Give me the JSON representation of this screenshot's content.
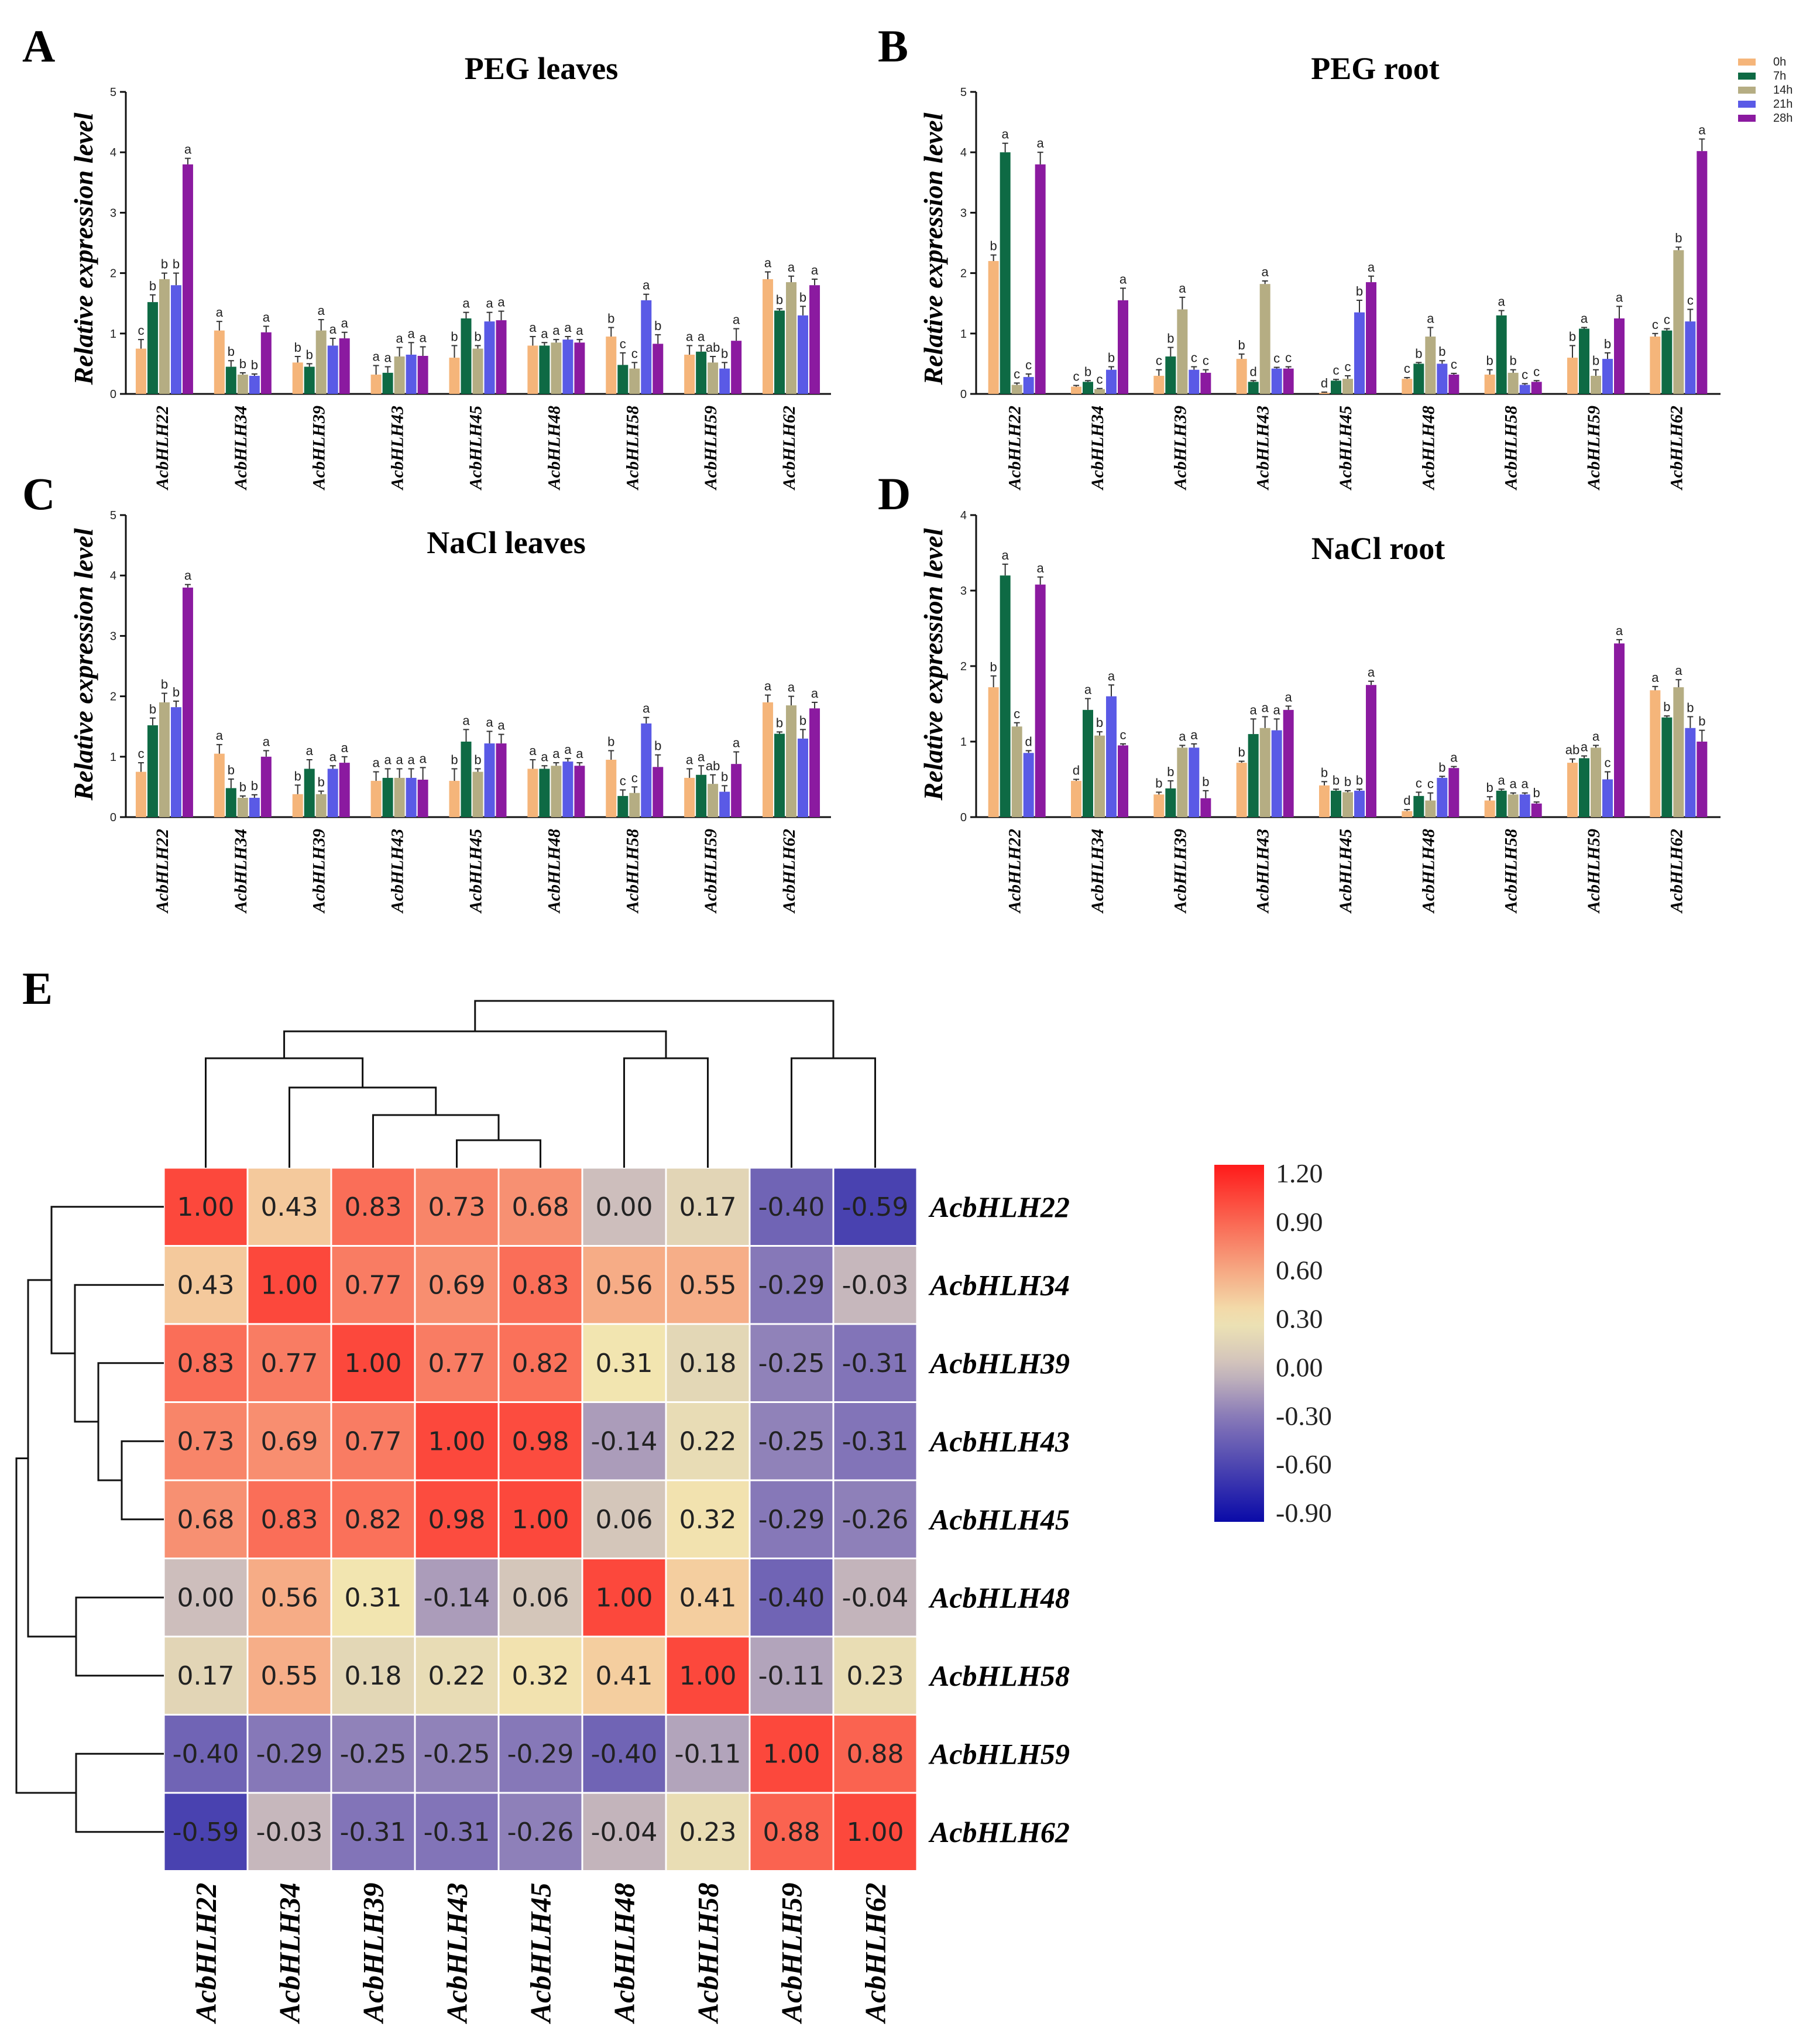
{
  "chart_data": [
    {
      "panel": "A",
      "type": "bar",
      "title": "PEG leaves",
      "ylabel": "Relative expression level",
      "ylim": [
        0,
        5
      ],
      "yticks": [
        0,
        1,
        2,
        3,
        4,
        5
      ],
      "categories": [
        "AcbHLH22",
        "AcbHLH34",
        "AcbHLH39",
        "AcbHLH43",
        "AcbHLH45",
        "AcbHLH48",
        "AcbHLH58",
        "AcbHLH59",
        "AcbHLH62"
      ],
      "series": [
        {
          "name": "0h",
          "values": [
            0.75,
            1.05,
            0.52,
            0.32,
            0.6,
            0.8,
            0.95,
            0.65,
            1.9
          ],
          "errors": [
            0.15,
            0.15,
            0.1,
            0.15,
            0.2,
            0.15,
            0.15,
            0.15,
            0.12
          ],
          "letters": [
            "c",
            "a",
            "b",
            "a",
            "b",
            "a",
            "b",
            "a",
            "a"
          ]
        },
        {
          "name": "7h",
          "values": [
            1.52,
            0.45,
            0.45,
            0.35,
            1.25,
            0.8,
            0.48,
            0.7,
            1.38
          ],
          "errors": [
            0.12,
            0.1,
            0.05,
            0.1,
            0.1,
            0.05,
            0.2,
            0.1,
            0.03
          ],
          "letters": [
            "b",
            "b",
            "b",
            "a",
            "a",
            "a",
            "c",
            "a",
            "b"
          ]
        },
        {
          "name": "14h",
          "values": [
            1.9,
            0.32,
            1.05,
            0.62,
            0.75,
            0.85,
            0.42,
            0.52,
            1.85
          ],
          "errors": [
            0.1,
            0.03,
            0.18,
            0.15,
            0.05,
            0.05,
            0.1,
            0.1,
            0.1
          ],
          "letters": [
            "b",
            "b",
            "a",
            "a",
            "b",
            "a",
            "c",
            "ab",
            "a"
          ]
        },
        {
          "name": "21h",
          "values": [
            1.8,
            0.3,
            0.8,
            0.65,
            1.2,
            0.9,
            1.55,
            0.42,
            1.3
          ],
          "errors": [
            0.2,
            0.03,
            0.12,
            0.2,
            0.15,
            0.05,
            0.1,
            0.1,
            0.15
          ],
          "letters": [
            "b",
            "b",
            "a",
            "a",
            "a",
            "a",
            "a",
            "b",
            "b"
          ]
        },
        {
          "name": "28h",
          "values": [
            3.8,
            1.02,
            0.92,
            0.63,
            1.22,
            0.85,
            0.83,
            0.88,
            1.8
          ],
          "errors": [
            0.1,
            0.1,
            0.1,
            0.15,
            0.15,
            0.05,
            0.15,
            0.2,
            0.1
          ],
          "letters": [
            "a",
            "a",
            "a",
            "a",
            "a",
            "a",
            "b",
            "a",
            "a"
          ]
        }
      ]
    },
    {
      "panel": "B",
      "type": "bar",
      "title": "PEG root",
      "ylabel": "Relative expression level",
      "ylim": [
        0,
        5
      ],
      "yticks": [
        0,
        1,
        2,
        3,
        4,
        5
      ],
      "categories": [
        "AcbHLH22",
        "AcbHLH34",
        "AcbHLH39",
        "AcbHLH43",
        "AcbHLH45",
        "AcbHLH48",
        "AcbHLH58",
        "AcbHLH59",
        "AcbHLH62"
      ],
      "series": [
        {
          "name": "0h",
          "values": [
            2.2,
            0.12,
            0.3,
            0.58,
            0.02,
            0.25,
            0.32,
            0.6,
            0.95
          ],
          "errors": [
            0.1,
            0.02,
            0.1,
            0.08,
            0.01,
            0.02,
            0.08,
            0.2,
            0.05
          ],
          "letters": [
            "b",
            "c",
            "c",
            "b",
            "d",
            "c",
            "b",
            "b",
            "c"
          ]
        },
        {
          "name": "7h",
          "values": [
            4.0,
            0.2,
            0.62,
            0.2,
            0.22,
            0.5,
            1.3,
            1.08,
            1.05
          ],
          "errors": [
            0.15,
            0.02,
            0.15,
            0.02,
            0.02,
            0.02,
            0.08,
            0.02,
            0.03
          ],
          "letters": [
            "a",
            "b",
            "b",
            "d",
            "c",
            "b",
            "a",
            "a",
            "c"
          ]
        },
        {
          "name": "14h",
          "values": [
            0.15,
            0.08,
            1.4,
            1.82,
            0.25,
            0.95,
            0.35,
            0.3,
            2.38
          ],
          "errors": [
            0.03,
            0.01,
            0.2,
            0.05,
            0.05,
            0.15,
            0.05,
            0.1,
            0.05
          ],
          "letters": [
            "c",
            "c",
            "a",
            "a",
            "c",
            "a",
            "b",
            "b",
            "b"
          ]
        },
        {
          "name": "21h",
          "values": [
            0.28,
            0.4,
            0.4,
            0.42,
            1.35,
            0.5,
            0.15,
            0.58,
            1.2
          ],
          "errors": [
            0.05,
            0.05,
            0.05,
            0.02,
            0.2,
            0.05,
            0.02,
            0.1,
            0.2
          ],
          "letters": [
            "c",
            "b",
            "c",
            "c",
            "b",
            "b",
            "c",
            "b",
            "c"
          ]
        },
        {
          "name": "28h",
          "values": [
            3.8,
            1.55,
            0.35,
            0.42,
            1.85,
            0.32,
            0.2,
            1.25,
            4.02
          ],
          "errors": [
            0.2,
            0.2,
            0.05,
            0.03,
            0.1,
            0.02,
            0.02,
            0.2,
            0.2
          ],
          "letters": [
            "a",
            "a",
            "c",
            "c",
            "a",
            "c",
            "c",
            "a",
            "a"
          ]
        }
      ]
    },
    {
      "panel": "C",
      "type": "bar",
      "title": "NaCl leaves",
      "ylabel": "Relative expression level",
      "ylim": [
        0,
        5
      ],
      "yticks": [
        0,
        1,
        2,
        3,
        4,
        5
      ],
      "categories": [
        "AcbHLH22",
        "AcbHLH34",
        "AcbHLH39",
        "AcbHLH43",
        "AcbHLH45",
        "AcbHLH48",
        "AcbHLH58",
        "AcbHLH59",
        "AcbHLH62"
      ],
      "series": [
        {
          "name": "0h",
          "values": [
            0.75,
            1.05,
            0.38,
            0.6,
            0.6,
            0.8,
            0.95,
            0.65,
            1.9
          ],
          "errors": [
            0.15,
            0.15,
            0.15,
            0.15,
            0.2,
            0.15,
            0.15,
            0.15,
            0.12
          ],
          "letters": [
            "c",
            "a",
            "b",
            "a",
            "b",
            "a",
            "b",
            "a",
            "a"
          ]
        },
        {
          "name": "7h",
          "values": [
            1.52,
            0.48,
            0.8,
            0.65,
            1.25,
            0.8,
            0.35,
            0.7,
            1.38
          ],
          "errors": [
            0.12,
            0.15,
            0.15,
            0.15,
            0.2,
            0.05,
            0.1,
            0.15,
            0.03
          ],
          "letters": [
            "b",
            "b",
            "a",
            "a",
            "a",
            "a",
            "c",
            "a",
            "b"
          ]
        },
        {
          "name": "14h",
          "values": [
            1.9,
            0.32,
            0.38,
            0.65,
            0.75,
            0.85,
            0.4,
            0.55,
            1.85
          ],
          "errors": [
            0.15,
            0.03,
            0.05,
            0.15,
            0.05,
            0.05,
            0.1,
            0.15,
            0.15
          ],
          "letters": [
            "b",
            "b",
            "b",
            "a",
            "b",
            "a",
            "c",
            "ab",
            "a"
          ]
        },
        {
          "name": "21h",
          "values": [
            1.82,
            0.32,
            0.8,
            0.65,
            1.22,
            0.92,
            1.55,
            0.42,
            1.3
          ],
          "errors": [
            0.1,
            0.05,
            0.05,
            0.15,
            0.2,
            0.05,
            0.1,
            0.1,
            0.15
          ],
          "letters": [
            "b",
            "b",
            "a",
            "a",
            "a",
            "a",
            "a",
            "b",
            "b"
          ]
        },
        {
          "name": "28h",
          "values": [
            3.8,
            1.0,
            0.9,
            0.62,
            1.22,
            0.85,
            0.83,
            0.88,
            1.8
          ],
          "errors": [
            0.05,
            0.1,
            0.1,
            0.2,
            0.15,
            0.05,
            0.2,
            0.2,
            0.1
          ],
          "letters": [
            "a",
            "a",
            "a",
            "a",
            "a",
            "a",
            "b",
            "a",
            "a"
          ]
        }
      ]
    },
    {
      "panel": "D",
      "type": "bar",
      "title": "NaCl root",
      "ylabel": "Relative expression level",
      "ylim": [
        0,
        4
      ],
      "yticks": [
        0,
        1,
        2,
        3,
        4
      ],
      "categories": [
        "AcbHLH22",
        "AcbHLH34",
        "AcbHLH39",
        "AcbHLH43",
        "AcbHLH45",
        "AcbHLH48",
        "AcbHLH58",
        "AcbHLH59",
        "AcbHLH62"
      ],
      "series": [
        {
          "name": "0h",
          "values": [
            1.72,
            0.48,
            0.3,
            0.72,
            0.42,
            0.08,
            0.22,
            0.72,
            1.68
          ],
          "errors": [
            0.15,
            0.02,
            0.03,
            0.02,
            0.05,
            0.02,
            0.05,
            0.05,
            0.05
          ],
          "letters": [
            "b",
            "d",
            "b",
            "b",
            "b",
            "d",
            "b",
            "ab",
            "a"
          ]
        },
        {
          "name": "7h",
          "values": [
            3.2,
            1.42,
            0.38,
            1.1,
            0.35,
            0.28,
            0.35,
            0.78,
            1.32
          ],
          "errors": [
            0.15,
            0.15,
            0.1,
            0.2,
            0.02,
            0.05,
            0.02,
            0.03,
            0.02
          ],
          "letters": [
            "a",
            "a",
            "b",
            "a",
            "b",
            "c",
            "a",
            "a",
            "b"
          ]
        },
        {
          "name": "14h",
          "values": [
            1.2,
            1.08,
            0.92,
            1.18,
            0.33,
            0.22,
            0.3,
            0.92,
            1.72
          ],
          "errors": [
            0.05,
            0.05,
            0.03,
            0.15,
            0.02,
            0.1,
            0.02,
            0.03,
            0.1
          ],
          "letters": [
            "c",
            "b",
            "a",
            "a",
            "b",
            "c",
            "a",
            "a",
            "a"
          ]
        },
        {
          "name": "21h",
          "values": [
            0.85,
            1.6,
            0.92,
            1.15,
            0.35,
            0.52,
            0.3,
            0.5,
            1.18
          ],
          "errors": [
            0.03,
            0.15,
            0.05,
            0.15,
            0.02,
            0.02,
            0.02,
            0.1,
            0.15
          ],
          "letters": [
            "d",
            "a",
            "a",
            "a",
            "b",
            "b",
            "a",
            "c",
            "b"
          ]
        },
        {
          "name": "28h",
          "values": [
            3.08,
            0.95,
            0.25,
            1.42,
            1.75,
            0.65,
            0.18,
            2.3,
            1.0
          ],
          "errors": [
            0.1,
            0.02,
            0.1,
            0.05,
            0.05,
            0.02,
            0.02,
            0.05,
            0.15
          ],
          "letters": [
            "a",
            "c",
            "b",
            "a",
            "a",
            "a",
            "b",
            "a",
            "b"
          ]
        }
      ]
    },
    {
      "panel": "E",
      "type": "heatmap",
      "labels": [
        "AcbHLH22",
        "AcbHLH34",
        "AcbHLH39",
        "AcbHLH43",
        "AcbHLH45",
        "AcbHLH48",
        "AcbHLH58",
        "AcbHLH59",
        "AcbHLH62"
      ],
      "matrix": [
        [
          "1.00",
          "0.43",
          "0.83",
          "0.73",
          "0.68",
          "0.00",
          "0.17",
          "-0.40",
          "-0.59"
        ],
        [
          "0.43",
          "1.00",
          "0.77",
          "0.69",
          "0.83",
          "0.56",
          "0.55",
          "-0.29",
          "-0.03"
        ],
        [
          "0.83",
          "0.77",
          "1.00",
          "0.77",
          "0.82",
          "0.31",
          "0.18",
          "-0.25",
          "-0.31"
        ],
        [
          "0.73",
          "0.69",
          "0.77",
          "1.00",
          "0.98",
          "-0.14",
          "0.22",
          "-0.25",
          "-0.31"
        ],
        [
          "0.68",
          "0.83",
          "0.82",
          "0.98",
          "1.00",
          "0.06",
          "0.32",
          "-0.29",
          "-0.26"
        ],
        [
          "0.00",
          "0.56",
          "0.31",
          "-0.14",
          "0.06",
          "1.00",
          "0.41",
          "-0.40",
          "-0.04"
        ],
        [
          "0.17",
          "0.55",
          "0.18",
          "0.22",
          "0.32",
          "0.41",
          "1.00",
          "-0.11",
          "0.23"
        ],
        [
          "-0.40",
          "-0.29",
          "-0.25",
          "-0.25",
          "-0.29",
          "-0.40",
          "-0.11",
          "1.00",
          "0.88"
        ],
        [
          "-0.59",
          "-0.03",
          "-0.31",
          "-0.31",
          "-0.26",
          "-0.04",
          "0.23",
          "0.88",
          "1.00"
        ]
      ],
      "colorbar_ticks": [
        "1.20",
        "0.90",
        "0.60",
        "0.30",
        "0.00",
        "-0.30",
        "-0.60",
        "-0.90"
      ],
      "colorbar_range": [
        -0.9,
        1.2
      ]
    }
  ],
  "series_colors": [
    "#f5b57a",
    "#0e6a44",
    "#b5ad83",
    "#5a5ae6",
    "#8b1aa0"
  ],
  "heatmap_colors": {
    "low": "#0a0aa8",
    "mid_low": "#8476b8",
    "zero": "#cdbebc",
    "mid_high": "#f2e7b2",
    "high": "#ff1a1a"
  }
}
